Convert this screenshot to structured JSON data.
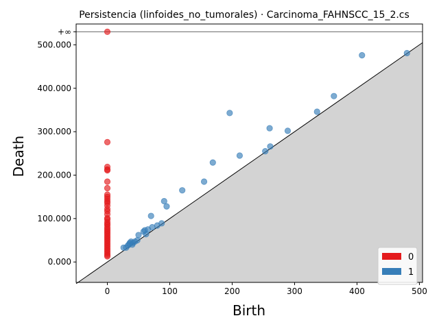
{
  "chart_data": {
    "type": "scatter",
    "title": "Persistencia (linfoides_no_tumorales) · Carcinoma_FAHNSCC_15_2.cs",
    "xlabel": "Birth",
    "ylabel": "Death",
    "xlim": [
      -50,
      505
    ],
    "ylim": [
      -47,
      548
    ],
    "infinity_value": 530,
    "infinity_label": "+∞",
    "x_ticks": [
      {
        "value": 0,
        "label": "0"
      },
      {
        "value": 100,
        "label": "100"
      },
      {
        "value": 200,
        "label": "200"
      },
      {
        "value": 300,
        "label": "300"
      },
      {
        "value": 400,
        "label": "400"
      },
      {
        "value": 500,
        "label": "500"
      }
    ],
    "y_ticks": [
      {
        "value": 0,
        "label": "0.000"
      },
      {
        "value": 100,
        "label": "100.000"
      },
      {
        "value": 200,
        "label": "200.000"
      },
      {
        "value": 300,
        "label": "300.000"
      },
      {
        "value": 400,
        "label": "400.000"
      },
      {
        "value": 500,
        "label": "500.000"
      }
    ],
    "grid": false,
    "diagonal": true,
    "legend_position": "bottom-right",
    "series": [
      {
        "name": "0",
        "color": "#e41a1c",
        "points": [
          [
            0,
            530
          ],
          [
            0,
            276
          ],
          [
            0,
            219
          ],
          [
            0,
            213
          ],
          [
            0,
            211
          ],
          [
            0,
            185
          ],
          [
            0,
            170
          ],
          [
            0,
            155
          ],
          [
            0,
            150
          ],
          [
            0,
            145
          ],
          [
            0,
            140
          ],
          [
            0,
            136
          ],
          [
            0,
            130
          ],
          [
            0,
            122
          ],
          [
            0,
            117
          ],
          [
            0,
            110
          ],
          [
            0,
            101
          ],
          [
            0,
            98
          ],
          [
            0,
            92
          ],
          [
            0,
            88
          ],
          [
            0,
            85
          ],
          [
            0,
            80
          ],
          [
            0,
            76
          ],
          [
            0,
            72
          ],
          [
            0,
            68
          ],
          [
            0,
            64
          ],
          [
            0,
            60
          ],
          [
            0,
            56
          ],
          [
            0,
            52
          ],
          [
            0,
            48
          ],
          [
            0,
            44
          ],
          [
            0,
            40
          ],
          [
            0,
            36
          ],
          [
            0,
            32
          ],
          [
            0,
            28
          ],
          [
            0,
            24
          ],
          [
            0,
            20
          ],
          [
            0,
            16
          ],
          [
            0,
            13
          ]
        ]
      },
      {
        "name": "1",
        "color": "#377eb8",
        "points": [
          [
            480,
            481
          ],
          [
            408,
            476
          ],
          [
            363,
            382
          ],
          [
            336,
            346
          ],
          [
            196,
            343
          ],
          [
            260,
            308
          ],
          [
            289,
            302
          ],
          [
            261,
            266
          ],
          [
            253,
            255
          ],
          [
            212,
            245
          ],
          [
            169,
            229
          ],
          [
            155,
            185
          ],
          [
            120,
            165
          ],
          [
            91,
            140
          ],
          [
            95,
            128
          ],
          [
            70,
            106
          ],
          [
            87,
            89
          ],
          [
            80,
            84
          ],
          [
            72,
            80
          ],
          [
            65,
            75
          ],
          [
            60,
            73
          ],
          [
            62,
            64
          ],
          [
            58,
            70
          ],
          [
            50,
            62
          ],
          [
            48,
            50
          ],
          [
            44,
            47
          ],
          [
            41,
            44
          ],
          [
            38,
            47
          ],
          [
            36,
            44
          ],
          [
            35,
            41
          ],
          [
            33,
            38
          ],
          [
            30,
            33
          ],
          [
            26,
            33
          ],
          [
            40,
            40
          ]
        ]
      }
    ]
  }
}
